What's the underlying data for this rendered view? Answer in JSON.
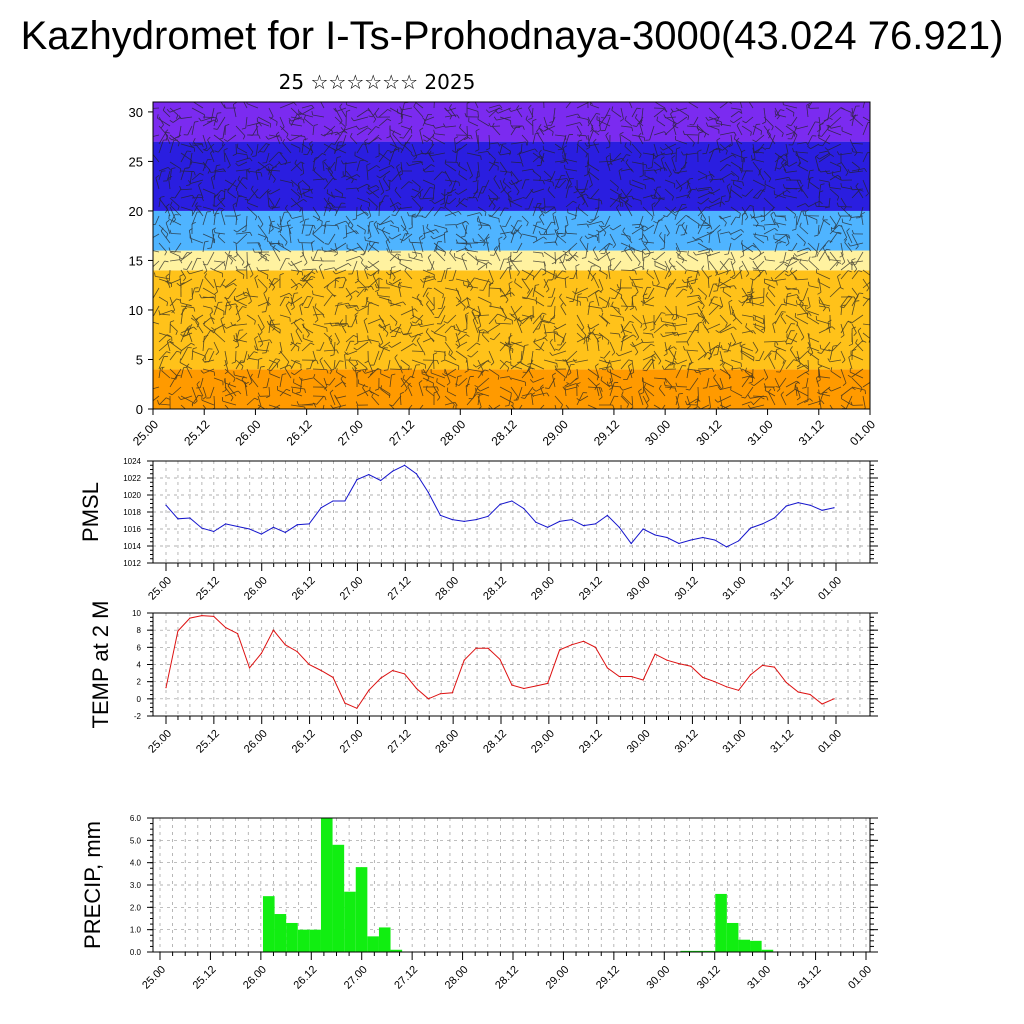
{
  "page": {
    "title": "Kazhydromet for I-Ts-Prohodnaya-3000(43.024 76.921)",
    "subtitle": "25 ☆☆☆☆☆☆ 2025"
  },
  "colors": {
    "pmsl_line": "#1515cc",
    "temp_line": "#dd1111",
    "precip_bar": "#11ee11",
    "frame": "#000000",
    "high_band": "#7b2bf0",
    "mid_band": "#4fb4ff",
    "low_band": "#ffc21a",
    "surface": "#ff9a00"
  },
  "chart_data": [
    {
      "id": "cross-section",
      "type": "heatmap",
      "title": "",
      "xlabel": "",
      "ylabel": "",
      "ylim": [
        0,
        31
      ],
      "x_ticks": [
        "25.00",
        "25.12",
        "26.00",
        "26.12",
        "27.00",
        "27.12",
        "28.00",
        "28.12",
        "29.00",
        "29.12",
        "30.00",
        "30.12",
        "31.00",
        "31.12",
        "01.00"
      ],
      "y_ticks": [
        0,
        5,
        10,
        15,
        20,
        25,
        30
      ],
      "color_layers": [
        {
          "from": 0,
          "to": 4,
          "color": "#ff9a00"
        },
        {
          "from": 4,
          "to": 14,
          "color": "#ffc21a"
        },
        {
          "from": 14,
          "to": 16,
          "color": "#fff2a0"
        },
        {
          "from": 16,
          "to": 20,
          "color": "#4fb4ff"
        },
        {
          "from": 20,
          "to": 27,
          "color": "#2a1ee0"
        },
        {
          "from": 27,
          "to": 31,
          "color": "#7b2bf0"
        }
      ],
      "overlay": "wind barbs"
    },
    {
      "id": "pmsl",
      "type": "line",
      "title": "",
      "xlabel": "",
      "ylabel": "PMSL",
      "ylim": [
        1012,
        1024
      ],
      "y_ticks": [
        1012,
        1014,
        1016,
        1018,
        1020,
        1022,
        1024
      ],
      "x_ticks": [
        "25.00",
        "25.12",
        "26.00",
        "26.12",
        "27.00",
        "27.12",
        "28.00",
        "28.12",
        "29.00",
        "29.12",
        "30.00",
        "30.12",
        "31.00",
        "31.12",
        "01.00"
      ],
      "values": [
        1018.8,
        1017.2,
        1017.3,
        1016.1,
        1015.7,
        1016.6,
        1016.3,
        1016.0,
        1015.4,
        1016.2,
        1015.6,
        1016.5,
        1016.6,
        1018.5,
        1019.3,
        1019.3,
        1021.8,
        1022.4,
        1021.7,
        1022.8,
        1023.5,
        1022.5,
        1020.3,
        1017.6,
        1017.1,
        1016.9,
        1017.1,
        1017.5,
        1018.9,
        1019.3,
        1018.4,
        1016.8,
        1016.2,
        1016.9,
        1017.1,
        1016.4,
        1016.6,
        1017.6,
        1016.2,
        1014.3,
        1016.0,
        1015.3,
        1015.0,
        1014.3,
        1014.7,
        1015.0,
        1014.7,
        1013.9,
        1014.6,
        1016.1,
        1016.6,
        1017.3,
        1018.7,
        1019.1,
        1018.8,
        1018.2,
        1018.5
      ]
    },
    {
      "id": "temp",
      "type": "line",
      "title": "",
      "xlabel": "",
      "ylabel": "TEMP at 2 M",
      "ylim": [
        -2,
        10
      ],
      "y_ticks": [
        -2,
        0,
        2,
        4,
        6,
        8,
        10
      ],
      "x_ticks": [
        "25.00",
        "25.12",
        "26.00",
        "26.12",
        "27.00",
        "27.12",
        "28.00",
        "28.12",
        "29.00",
        "29.12",
        "30.00",
        "30.12",
        "31.00",
        "31.12",
        "01.00"
      ],
      "values": [
        1.3,
        7.9,
        9.4,
        9.7,
        9.6,
        8.3,
        7.6,
        3.6,
        5.3,
        8.0,
        6.3,
        5.5,
        4.0,
        3.3,
        2.5,
        -0.5,
        -1.1,
        1.0,
        2.4,
        3.3,
        2.9,
        1.2,
        0.0,
        0.6,
        0.7,
        4.5,
        5.9,
        5.9,
        4.6,
        1.6,
        1.2,
        1.5,
        1.8,
        5.7,
        6.3,
        6.7,
        6.0,
        3.6,
        2.6,
        2.6,
        2.2,
        5.2,
        4.5,
        4.1,
        3.8,
        2.5,
        2.0,
        1.4,
        1.0,
        2.8,
        3.9,
        3.7,
        1.9,
        0.8,
        0.5,
        -0.6,
        0.0
      ]
    },
    {
      "id": "precip",
      "type": "bar",
      "title": "",
      "xlabel": "",
      "ylabel": "PRECIP, mm",
      "ylim": [
        0,
        6
      ],
      "y_ticks": [
        "0.0",
        "1.0",
        "2.0",
        "3.0",
        "4.0",
        "5.0",
        "6.0"
      ],
      "x_ticks": [
        "25.00",
        "25.12",
        "26.00",
        "26.12",
        "27.00",
        "27.12",
        "28.00",
        "28.12",
        "29.00",
        "29.12",
        "30.00",
        "30.12",
        "31.00",
        "31.12",
        "01.00"
      ],
      "values": [
        0,
        0,
        0,
        0,
        0,
        2.5,
        1.7,
        1.3,
        1.0,
        1.0,
        6.0,
        4.8,
        2.7,
        3.8,
        0.7,
        1.1,
        0.1,
        0,
        0,
        0,
        0,
        0,
        0,
        0,
        0,
        0,
        0,
        0,
        0,
        0,
        0,
        0,
        0,
        0,
        0,
        0,
        0,
        0,
        0,
        0,
        0,
        0.05,
        0.05,
        0.05,
        2.6,
        1.3,
        0.55,
        0.5,
        0.1,
        0,
        0,
        0,
        0,
        0,
        0,
        0,
        0
      ]
    }
  ]
}
